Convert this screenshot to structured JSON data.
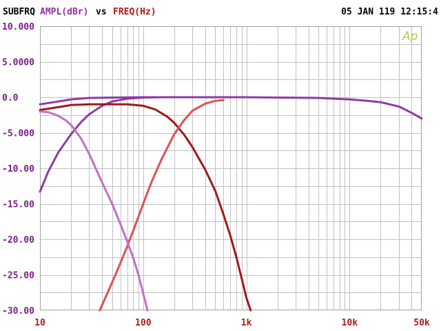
{
  "header": {
    "title": "SUBFRQ",
    "ylabel": "AMPL(dBr)",
    "vs": "vs",
    "xlabel": "FREQ(Hz)",
    "timestamp": "05 JAN 119 12:15:4"
  },
  "logo": "Ap",
  "colors": {
    "background": "#ffffff",
    "grid": "#c0c0c0",
    "frame": "#a0a0a0",
    "header_text": "#000000",
    "ylabel_text": "#9030a0",
    "xlabel_text": "#b01818",
    "ytick_text": "#7a1e8a",
    "xtick_text": "#b01818",
    "logo": "#b5c94a"
  },
  "chart_data": {
    "type": "line",
    "title": "SUBFRQ",
    "xlabel": "FREQ(Hz)",
    "ylabel": "AMPL(dBr)",
    "xscale": "log",
    "xlim": [
      10,
      50000
    ],
    "ylim": [
      -30,
      10
    ],
    "grid": true,
    "x_ticks": [
      {
        "value": 10,
        "label": "10"
      },
      {
        "value": 100,
        "label": "100"
      },
      {
        "value": 1000,
        "label": "1k"
      },
      {
        "value": 10000,
        "label": "10k"
      },
      {
        "value": 50000,
        "label": "50k"
      }
    ],
    "y_ticks": [
      {
        "value": 10,
        "label": "10.000"
      },
      {
        "value": 5,
        "label": "5.0000"
      },
      {
        "value": 0,
        "label": "0.0"
      },
      {
        "value": -5,
        "label": "-5.000"
      },
      {
        "value": -10,
        "label": "-10.00"
      },
      {
        "value": -15,
        "label": "-15.00"
      },
      {
        "value": -20,
        "label": "-20.00"
      },
      {
        "value": -25,
        "label": "-25.00"
      },
      {
        "value": -30,
        "label": "-30.00"
      }
    ],
    "series": [
      {
        "color": "#8e3aa6",
        "points": [
          [
            10,
            -1.0
          ],
          [
            15,
            -0.6
          ],
          [
            20,
            -0.3
          ],
          [
            30,
            -0.1
          ],
          [
            50,
            -0.05
          ],
          [
            100,
            0
          ],
          [
            1000,
            0
          ],
          [
            5000,
            -0.1
          ],
          [
            10000,
            -0.3
          ],
          [
            15000,
            -0.5
          ],
          [
            20000,
            -0.7
          ],
          [
            30000,
            -1.3
          ],
          [
            40000,
            -2.2
          ],
          [
            50000,
            -3.0
          ]
        ]
      },
      {
        "color": "#8e3aa6",
        "points": [
          [
            10,
            -13.3
          ],
          [
            12,
            -10.5
          ],
          [
            15,
            -7.8
          ],
          [
            20,
            -5.2
          ],
          [
            25,
            -3.5
          ],
          [
            30,
            -2.4
          ],
          [
            40,
            -1.2
          ],
          [
            50,
            -0.6
          ],
          [
            70,
            -0.2
          ],
          [
            100,
            -0.05
          ],
          [
            150,
            0
          ],
          [
            300,
            0
          ],
          [
            1000,
            0
          ]
        ]
      },
      {
        "color": "#a01818",
        "points": [
          [
            10,
            -1.8
          ],
          [
            15,
            -1.4
          ],
          [
            20,
            -1.1
          ],
          [
            30,
            -1.0
          ],
          [
            50,
            -1.0
          ],
          [
            70,
            -1.0
          ],
          [
            100,
            -1.2
          ],
          [
            130,
            -1.7
          ],
          [
            170,
            -2.7
          ],
          [
            200,
            -3.6
          ],
          [
            250,
            -5.3
          ],
          [
            300,
            -7.0
          ],
          [
            400,
            -10.2
          ],
          [
            500,
            -13.2
          ],
          [
            600,
            -16.5
          ],
          [
            700,
            -19.5
          ],
          [
            800,
            -22.5
          ],
          [
            900,
            -25.5
          ],
          [
            1000,
            -28.2
          ],
          [
            1100,
            -30.0
          ]
        ]
      },
      {
        "color": "#e05050",
        "points": [
          [
            38,
            -30.0
          ],
          [
            45,
            -27.6
          ],
          [
            55,
            -24.7
          ],
          [
            70,
            -21.0
          ],
          [
            85,
            -17.8
          ],
          [
            100,
            -15.0
          ],
          [
            120,
            -12.0
          ],
          [
            150,
            -8.8
          ],
          [
            200,
            -5.2
          ],
          [
            250,
            -3.2
          ],
          [
            300,
            -1.9
          ],
          [
            400,
            -0.9
          ],
          [
            500,
            -0.5
          ],
          [
            600,
            -0.4
          ]
        ]
      },
      {
        "color": "#c070c0",
        "points": [
          [
            10,
            -2.0
          ],
          [
            12,
            -2.1
          ],
          [
            15,
            -2.6
          ],
          [
            18,
            -3.3
          ],
          [
            20,
            -3.9
          ],
          [
            25,
            -5.8
          ],
          [
            30,
            -8.0
          ],
          [
            40,
            -12.0
          ],
          [
            50,
            -15.0
          ],
          [
            60,
            -17.8
          ],
          [
            70,
            -20.3
          ],
          [
            80,
            -22.6
          ],
          [
            90,
            -25.0
          ],
          [
            100,
            -27.6
          ],
          [
            110,
            -30.0
          ]
        ]
      }
    ]
  }
}
